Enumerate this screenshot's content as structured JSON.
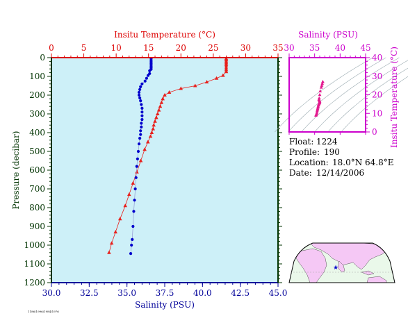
{
  "chart_data": [
    {
      "type": "line",
      "panel": "profile",
      "title": "",
      "top_axis": {
        "label": "Insitu Temperature (°C)",
        "range": [
          0,
          35
        ],
        "ticks": [
          0,
          5,
          10,
          15,
          20,
          25,
          30,
          35
        ],
        "tick_labels": [
          "0",
          "5",
          "10",
          "15",
          "20",
          "25",
          "30",
          "35"
        ]
      },
      "bottom_axis": {
        "label": "Salinity (PSU)",
        "range": [
          30,
          45
        ],
        "ticks": [
          30,
          32.5,
          35,
          37.5,
          40,
          42.5,
          45
        ],
        "tick_labels": [
          "30.0",
          "32.5",
          "35.0",
          "37.5",
          "40.0",
          "42.5",
          "45.0"
        ]
      },
      "y_axis": {
        "label": "Pressure (decibar)",
        "range": [
          0,
          1200
        ],
        "inverted": true,
        "ticks": [
          0,
          100,
          200,
          300,
          400,
          500,
          600,
          700,
          800,
          900,
          1000,
          1100,
          1200
        ],
        "tick_labels": [
          "0",
          "100",
          "200",
          "300",
          "400",
          "500",
          "600",
          "700",
          "800",
          "900",
          "1000",
          "1100",
          "1200"
        ]
      },
      "series": [
        {
          "x_axis": "top",
          "color": "#e8201c",
          "marker": "triangle",
          "points": [
            [
              27.0,
              5
            ],
            [
              27.0,
              12
            ],
            [
              27.0,
              20
            ],
            [
              27.0,
              28
            ],
            [
              27.0,
              36
            ],
            [
              27.0,
              45
            ],
            [
              27.0,
              55
            ],
            [
              27.0,
              65
            ],
            [
              27.0,
              75
            ],
            [
              26.5,
              95
            ],
            [
              25.5,
              110
            ],
            [
              24.0,
              130
            ],
            [
              22.2,
              150
            ],
            [
              20.0,
              165
            ],
            [
              18.2,
              185
            ],
            [
              17.5,
              200
            ],
            [
              17.2,
              220
            ],
            [
              17.0,
              240
            ],
            [
              16.8,
              260
            ],
            [
              16.6,
              280
            ],
            [
              16.4,
              300
            ],
            [
              16.2,
              320
            ],
            [
              16.0,
              340
            ],
            [
              15.8,
              360
            ],
            [
              15.7,
              380
            ],
            [
              15.5,
              400
            ],
            [
              15.3,
              420
            ],
            [
              14.9,
              450
            ],
            [
              14.4,
              490
            ],
            [
              13.8,
              550
            ],
            [
              13.2,
              610
            ],
            [
              12.6,
              670
            ],
            [
              12.0,
              730
            ],
            [
              11.4,
              790
            ],
            [
              10.6,
              860
            ],
            [
              9.9,
              930
            ],
            [
              9.3,
              990
            ],
            [
              8.9,
              1040
            ]
          ]
        },
        {
          "x_axis": "bottom",
          "color": "#0000cc",
          "marker": "circle",
          "points": [
            [
              36.6,
              5
            ],
            [
              36.6,
              14
            ],
            [
              36.6,
              22
            ],
            [
              36.6,
              30
            ],
            [
              36.6,
              38
            ],
            [
              36.6,
              46
            ],
            [
              36.6,
              54
            ],
            [
              36.6,
              62
            ],
            [
              36.5,
              70
            ],
            [
              36.5,
              85
            ],
            [
              36.4,
              95
            ],
            [
              36.3,
              110
            ],
            [
              36.2,
              125
            ],
            [
              36.0,
              140
            ],
            [
              35.9,
              155
            ],
            [
              35.85,
              170
            ],
            [
              35.8,
              185
            ],
            [
              35.8,
              200
            ],
            [
              35.85,
              215
            ],
            [
              35.9,
              230
            ],
            [
              35.95,
              250
            ],
            [
              36.0,
              270
            ],
            [
              36.0,
              290
            ],
            [
              36.0,
              310
            ],
            [
              36.0,
              330
            ],
            [
              35.95,
              350
            ],
            [
              35.95,
              370
            ],
            [
              35.9,
              390
            ],
            [
              35.9,
              410
            ],
            [
              35.85,
              430
            ],
            [
              35.8,
              460
            ],
            [
              35.75,
              500
            ],
            [
              35.7,
              540
            ],
            [
              35.65,
              580
            ],
            [
              35.6,
              640
            ],
            [
              35.55,
              700
            ],
            [
              35.5,
              760
            ],
            [
              35.45,
              820
            ],
            [
              35.4,
              900
            ],
            [
              35.35,
              970
            ],
            [
              35.3,
              1000
            ],
            [
              35.25,
              1045
            ]
          ]
        }
      ]
    },
    {
      "type": "scatter",
      "panel": "ts",
      "x_axis": {
        "label": "Salinity (PSU)",
        "range": [
          30,
          45
        ],
        "ticks": [
          30,
          35,
          40,
          45
        ],
        "tick_labels": [
          "30",
          "35",
          "40",
          "45"
        ]
      },
      "y_axis": {
        "label": "Insitu Temperature (°C)",
        "range": [
          0,
          40
        ],
        "ticks": [
          0,
          10,
          20,
          30,
          40
        ],
        "tick_labels": [
          "0",
          "10",
          "20",
          "30",
          "40"
        ]
      },
      "color": "#e31a8f",
      "points": [
        [
          36.6,
          27.0
        ],
        [
          36.6,
          27.0
        ],
        [
          36.5,
          26.0
        ],
        [
          36.4,
          25.0
        ],
        [
          36.3,
          24.0
        ],
        [
          36.1,
          22.0
        ],
        [
          36.0,
          20.0
        ],
        [
          35.9,
          18.2
        ],
        [
          35.85,
          17.5
        ],
        [
          35.9,
          17.2
        ],
        [
          35.95,
          16.8
        ],
        [
          36.0,
          16.4
        ],
        [
          36.0,
          16.0
        ],
        [
          35.95,
          15.7
        ],
        [
          35.9,
          15.5
        ],
        [
          35.85,
          15.3
        ],
        [
          35.8,
          14.9
        ],
        [
          35.75,
          14.4
        ],
        [
          35.7,
          13.8
        ],
        [
          35.65,
          13.2
        ],
        [
          35.6,
          12.6
        ],
        [
          35.55,
          12.0
        ],
        [
          35.5,
          11.4
        ],
        [
          35.45,
          10.6
        ],
        [
          35.4,
          9.9
        ],
        [
          35.3,
          9.3
        ],
        [
          35.25,
          8.9
        ]
      ]
    }
  ],
  "info": {
    "float_label": "Float:",
    "float_value": "1224",
    "profile_label": "Profile:",
    "profile_value": "190",
    "location_label": "Location:",
    "location_value": "18.0°N  64.8°E",
    "date_label": "Date:",
    "date_value": "12/14/2006"
  },
  "map": {
    "marker_lat": 18.0,
    "marker_lon": 64.8,
    "land_color": "#f5c8f5",
    "ocean_color": "#eaf8ea",
    "marker_color": "#0000cc"
  },
  "footer": {
    "stamp": "1186/1996/1984/1976"
  },
  "colors": {
    "temperature_axis": "#dd0000",
    "salinity_axis": "#000099",
    "ts_axis": "#cc00cc",
    "pressure_axis": "#003300",
    "plot_background": "#cdf0f8"
  }
}
